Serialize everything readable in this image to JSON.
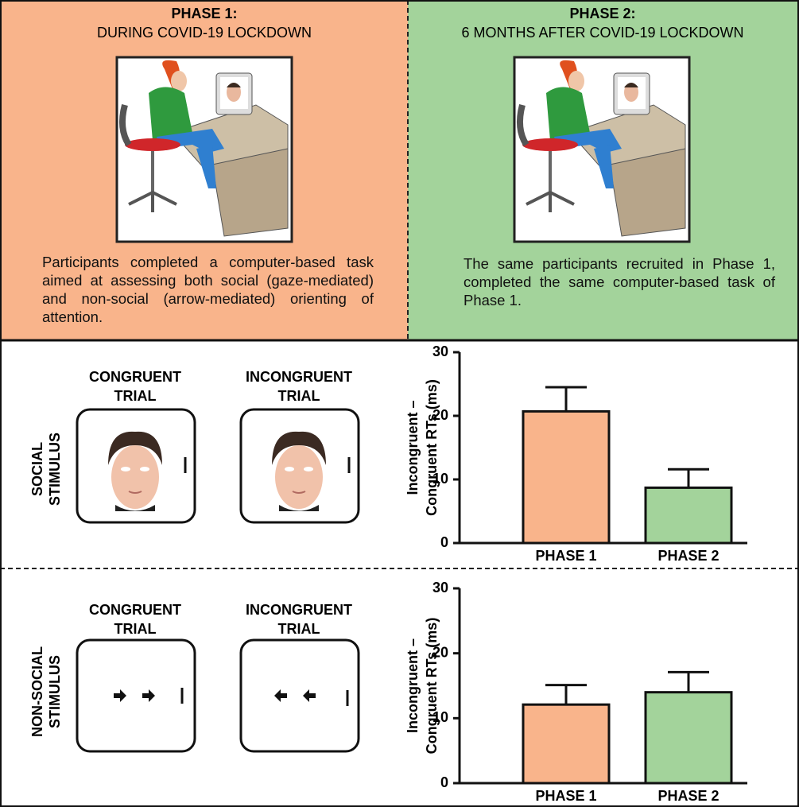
{
  "phases": [
    {
      "title": "PHASE 1:",
      "subtitle": "DURING COVID-19 LOCKDOWN",
      "description": "Participants completed a computer-based task aimed at assessing both social (gaze-mediated) and non-social (arrow-mediated) orienting of attention."
    },
    {
      "title": "PHASE 2:",
      "subtitle": "6 MONTHS AFTER COVID-19 LOCKDOWN",
      "description": "The same participants recruited in Phase 1, completed the same computer-based task of Phase 1."
    }
  ],
  "stimuli": [
    {
      "row_label": [
        "SOCIAL",
        "STIMULUS"
      ],
      "trials": [
        [
          "CONGRUENT",
          "TRIAL"
        ],
        [
          "INCONGRUENT",
          "TRIAL"
        ]
      ]
    },
    {
      "row_label": [
        "NON-SOCIAL",
        "STIMULUS"
      ],
      "trials": [
        [
          "CONGRUENT",
          "TRIAL"
        ],
        [
          "INCONGRUENT",
          "TRIAL"
        ]
      ]
    }
  ],
  "chart_data": [
    {
      "type": "bar",
      "ylabel": [
        "Incongruent –",
        "Congruent RTs (ms)"
      ],
      "categories": [
        "PHASE 1",
        "PHASE 2"
      ],
      "values": [
        20.7,
        8.7
      ],
      "errors": [
        3.8,
        2.9
      ],
      "colors": [
        "#f9b48b",
        "#a3d39b"
      ],
      "ylim": [
        0,
        30
      ],
      "yticks": [
        0,
        10,
        20,
        30
      ]
    },
    {
      "type": "bar",
      "ylabel": [
        "Incongruent –",
        "Congruent RTs (ms)"
      ],
      "categories": [
        "PHASE 1",
        "PHASE 2"
      ],
      "values": [
        12.1,
        14.0
      ],
      "errors": [
        3.0,
        3.1
      ],
      "colors": [
        "#f9b48b",
        "#a3d39b"
      ],
      "ylim": [
        0,
        30
      ],
      "yticks": [
        0,
        10,
        20,
        30
      ]
    }
  ]
}
